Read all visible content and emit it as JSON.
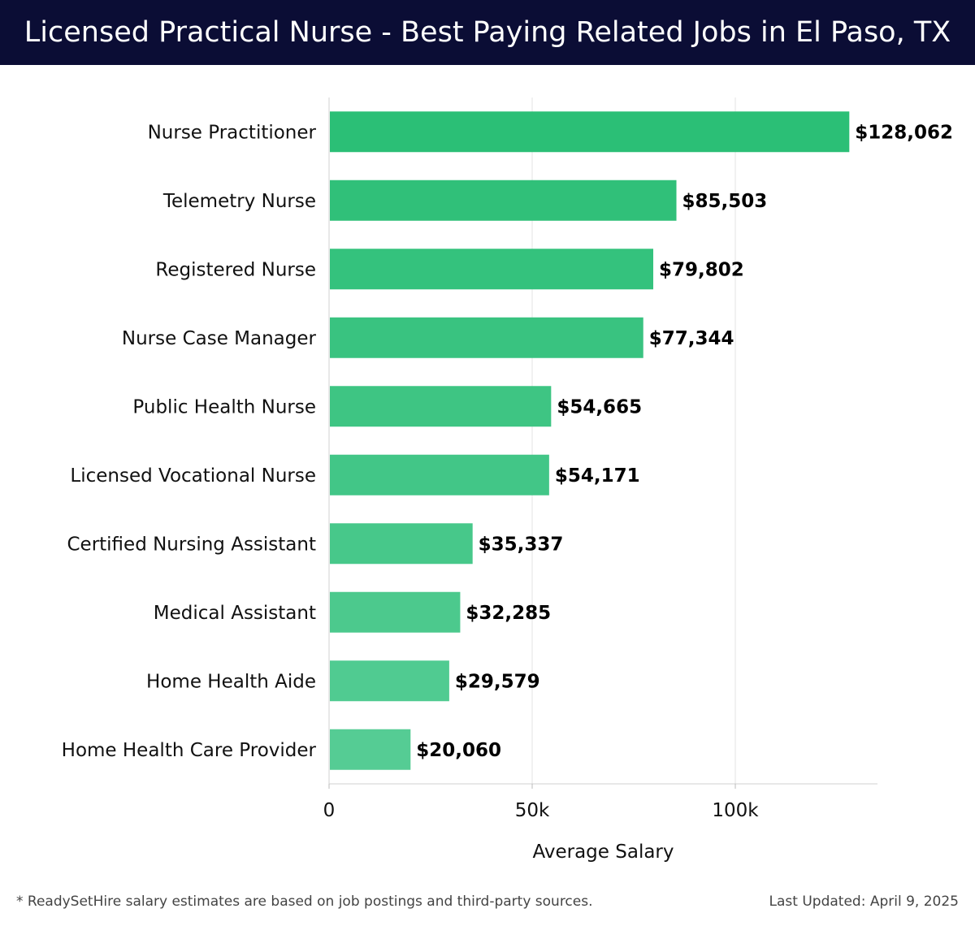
{
  "header": {
    "title": "Licensed Practical Nurse - Best Paying Related Jobs in El Paso, TX"
  },
  "chart_data": {
    "type": "bar",
    "orientation": "horizontal",
    "title": "Licensed Practical Nurse - Best Paying Related Jobs in El Paso, TX",
    "xlabel": "Average Salary",
    "ylabel": "",
    "categories": [
      "Nurse Practitioner",
      "Telemetry Nurse",
      "Registered Nurse",
      "Nurse Case Manager",
      "Public Health Nurse",
      "Licensed Vocational Nurse",
      "Certified Nursing Assistant",
      "Medical Assistant",
      "Home Health Aide",
      "Home Health Care Provider"
    ],
    "values": [
      128062,
      85503,
      79802,
      77344,
      54665,
      54171,
      35337,
      32285,
      29579,
      20060
    ],
    "value_labels": [
      "$128,062",
      "$85,503",
      "$79,802",
      "$77,344",
      "$54,665",
      "$54,171",
      "$35,337",
      "$32,285",
      "$29,579",
      "$20,060"
    ],
    "xlim": [
      0,
      135000
    ],
    "x_ticks": [
      0,
      50000,
      100000
    ],
    "x_tick_labels": [
      "0",
      "50k",
      "100k"
    ],
    "grid": true,
    "bar_color_top": "#2bbf76",
    "bar_color_bottom": "#55cc94",
    "value_label_position": "outside-end"
  },
  "footer": {
    "note": "* ReadySetHire salary estimates are based on job postings and third-party sources.",
    "updated": "Last Updated: April 9, 2025"
  }
}
